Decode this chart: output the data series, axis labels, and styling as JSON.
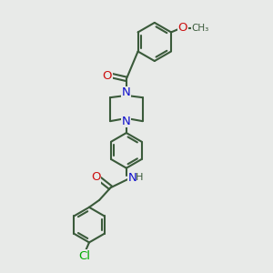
{
  "background_color": "#e8eae8",
  "bond_color": "#3a5a3a",
  "nitrogen_color": "#1010cc",
  "oxygen_color": "#cc1010",
  "chlorine_color": "#00aa00",
  "line_width": 1.5,
  "font_size_atom": 9.5,
  "xlim": [
    0,
    10
  ],
  "ylim": [
    0,
    12
  ],
  "figsize": [
    3.0,
    3.0
  ],
  "dpi": 100
}
